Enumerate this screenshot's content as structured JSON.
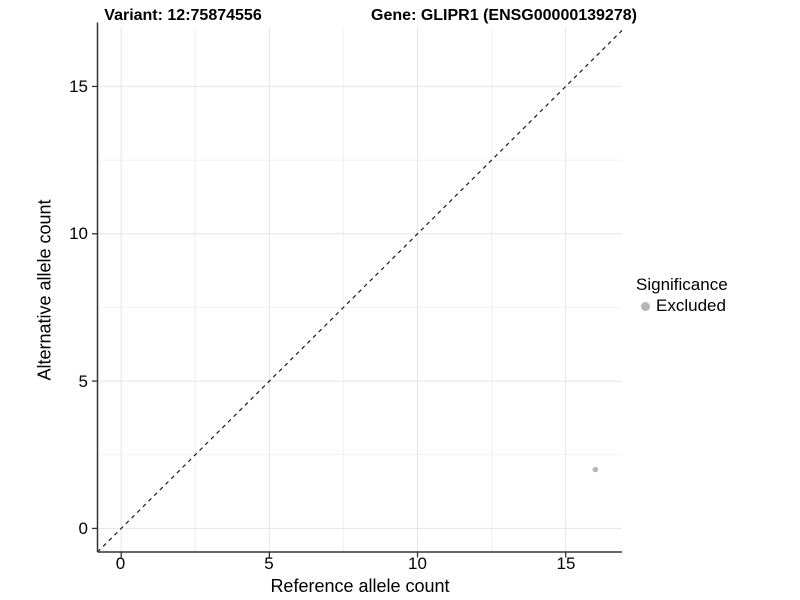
{
  "titles": {
    "variant": "Variant: 12:75874556",
    "gene": "Gene: GLIPR1 (ENSG00000139278)"
  },
  "axes": {
    "x": {
      "label": "Reference allele count",
      "ticks": [
        "0",
        "5",
        "10",
        "15"
      ]
    },
    "y": {
      "label": "Alternative allele count",
      "ticks": [
        "0",
        "5",
        "10",
        "15"
      ]
    }
  },
  "legend": {
    "title": "Significance",
    "items": [
      {
        "label": "Excluded",
        "color": "#b5b5b5"
      }
    ]
  },
  "colors": {
    "major_grid": "#e4e4e4",
    "minor_grid": "#f1f1f1",
    "axis_line": "#333333",
    "reference_line": "#1a1a1a",
    "point": "#b8b8b8"
  },
  "chart_data": {
    "type": "scatter",
    "title": "Variant: 12:75874556 — Gene: GLIPR1 (ENSG00000139278)",
    "xlabel": "Reference allele count",
    "ylabel": "Alternative allele count",
    "xlim": [
      -0.8,
      16.9
    ],
    "ylim": [
      -0.8,
      17.0
    ],
    "x_ticks": [
      0,
      5,
      10,
      15
    ],
    "y_ticks": [
      0,
      5,
      10,
      15
    ],
    "x_minor_ticks": [
      2.5,
      7.5,
      12.5
    ],
    "y_minor_ticks": [
      2.5,
      7.5,
      12.5
    ],
    "grid": "major+minor",
    "legend_position": "right",
    "series": [
      {
        "name": "Excluded",
        "color": "#b8b8b8",
        "marker_radius": 2.8,
        "points": [
          {
            "x": 16,
            "y": 2
          }
        ]
      }
    ],
    "reference_line": {
      "type": "identity",
      "style": "dashed",
      "from": [
        -0.8,
        -0.8
      ],
      "to": [
        16.9,
        16.9
      ]
    }
  }
}
